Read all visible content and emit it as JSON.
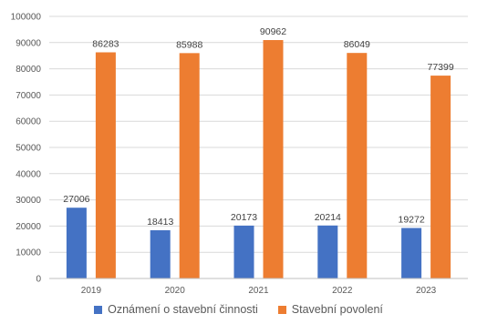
{
  "chart_data": {
    "type": "bar",
    "categories": [
      "2019",
      "2020",
      "2021",
      "2022",
      "2023"
    ],
    "series": [
      {
        "name": "Oznámení o stavební činnosti",
        "values": [
          27006,
          18413,
          20173,
          20214,
          19272
        ],
        "color": "#4472c4"
      },
      {
        "name": "Stavební povolení",
        "values": [
          86283,
          85988,
          90962,
          86049,
          77399
        ],
        "color": "#ed7d31"
      }
    ],
    "ylim": [
      0,
      100000
    ],
    "yticks": [
      "0",
      "10000",
      "20000",
      "30000",
      "40000",
      "50000",
      "60000",
      "70000",
      "80000",
      "90000",
      "100000"
    ],
    "grid": true,
    "legend_position": "bottom"
  }
}
